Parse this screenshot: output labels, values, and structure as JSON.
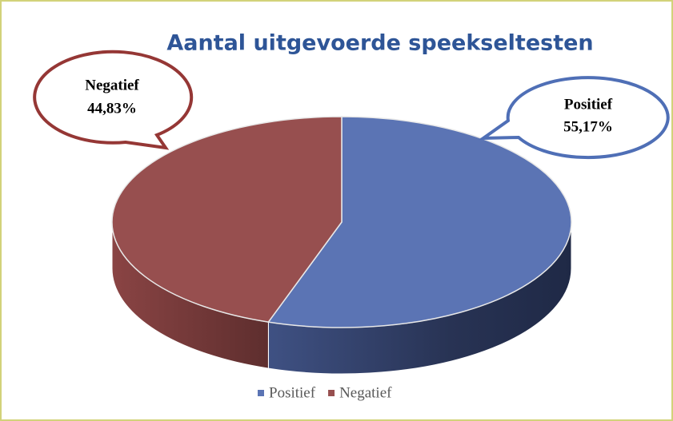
{
  "chart_data": {
    "type": "pie",
    "title": "Aantal uitgevoerde speekseltesten",
    "categories": [
      "Positief",
      "Negatief"
    ],
    "values": [
      55.17,
      44.83
    ],
    "value_labels": [
      "55,17%",
      "44,83%"
    ],
    "colors": [
      "#5b74b4",
      "#974f4f"
    ],
    "legend": "bottom"
  }
}
